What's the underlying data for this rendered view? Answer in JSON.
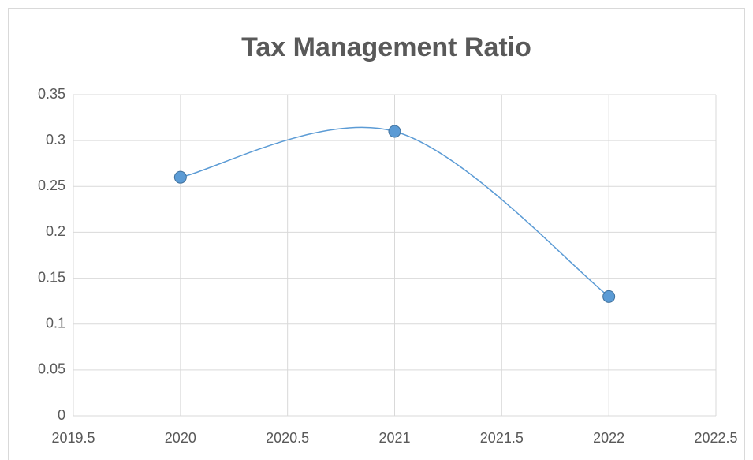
{
  "chart_data": {
    "type": "scatter",
    "title": "Tax Management Ratio",
    "x": [
      2020,
      2021,
      2022
    ],
    "series": [
      {
        "color": "#5b9bd5",
        "values": [
          0.26,
          0.31,
          0.13
        ]
      }
    ],
    "smooth": true,
    "xlim": [
      2019.5,
      2022.5
    ],
    "xticks": [
      2019.5,
      2020,
      2020.5,
      2021,
      2021.5,
      2022,
      2022.5
    ],
    "ylim": [
      0,
      0.35
    ],
    "yticks": [
      0,
      0.05,
      0.1,
      0.15,
      0.2,
      0.25,
      0.3,
      0.35
    ],
    "grid": true
  }
}
